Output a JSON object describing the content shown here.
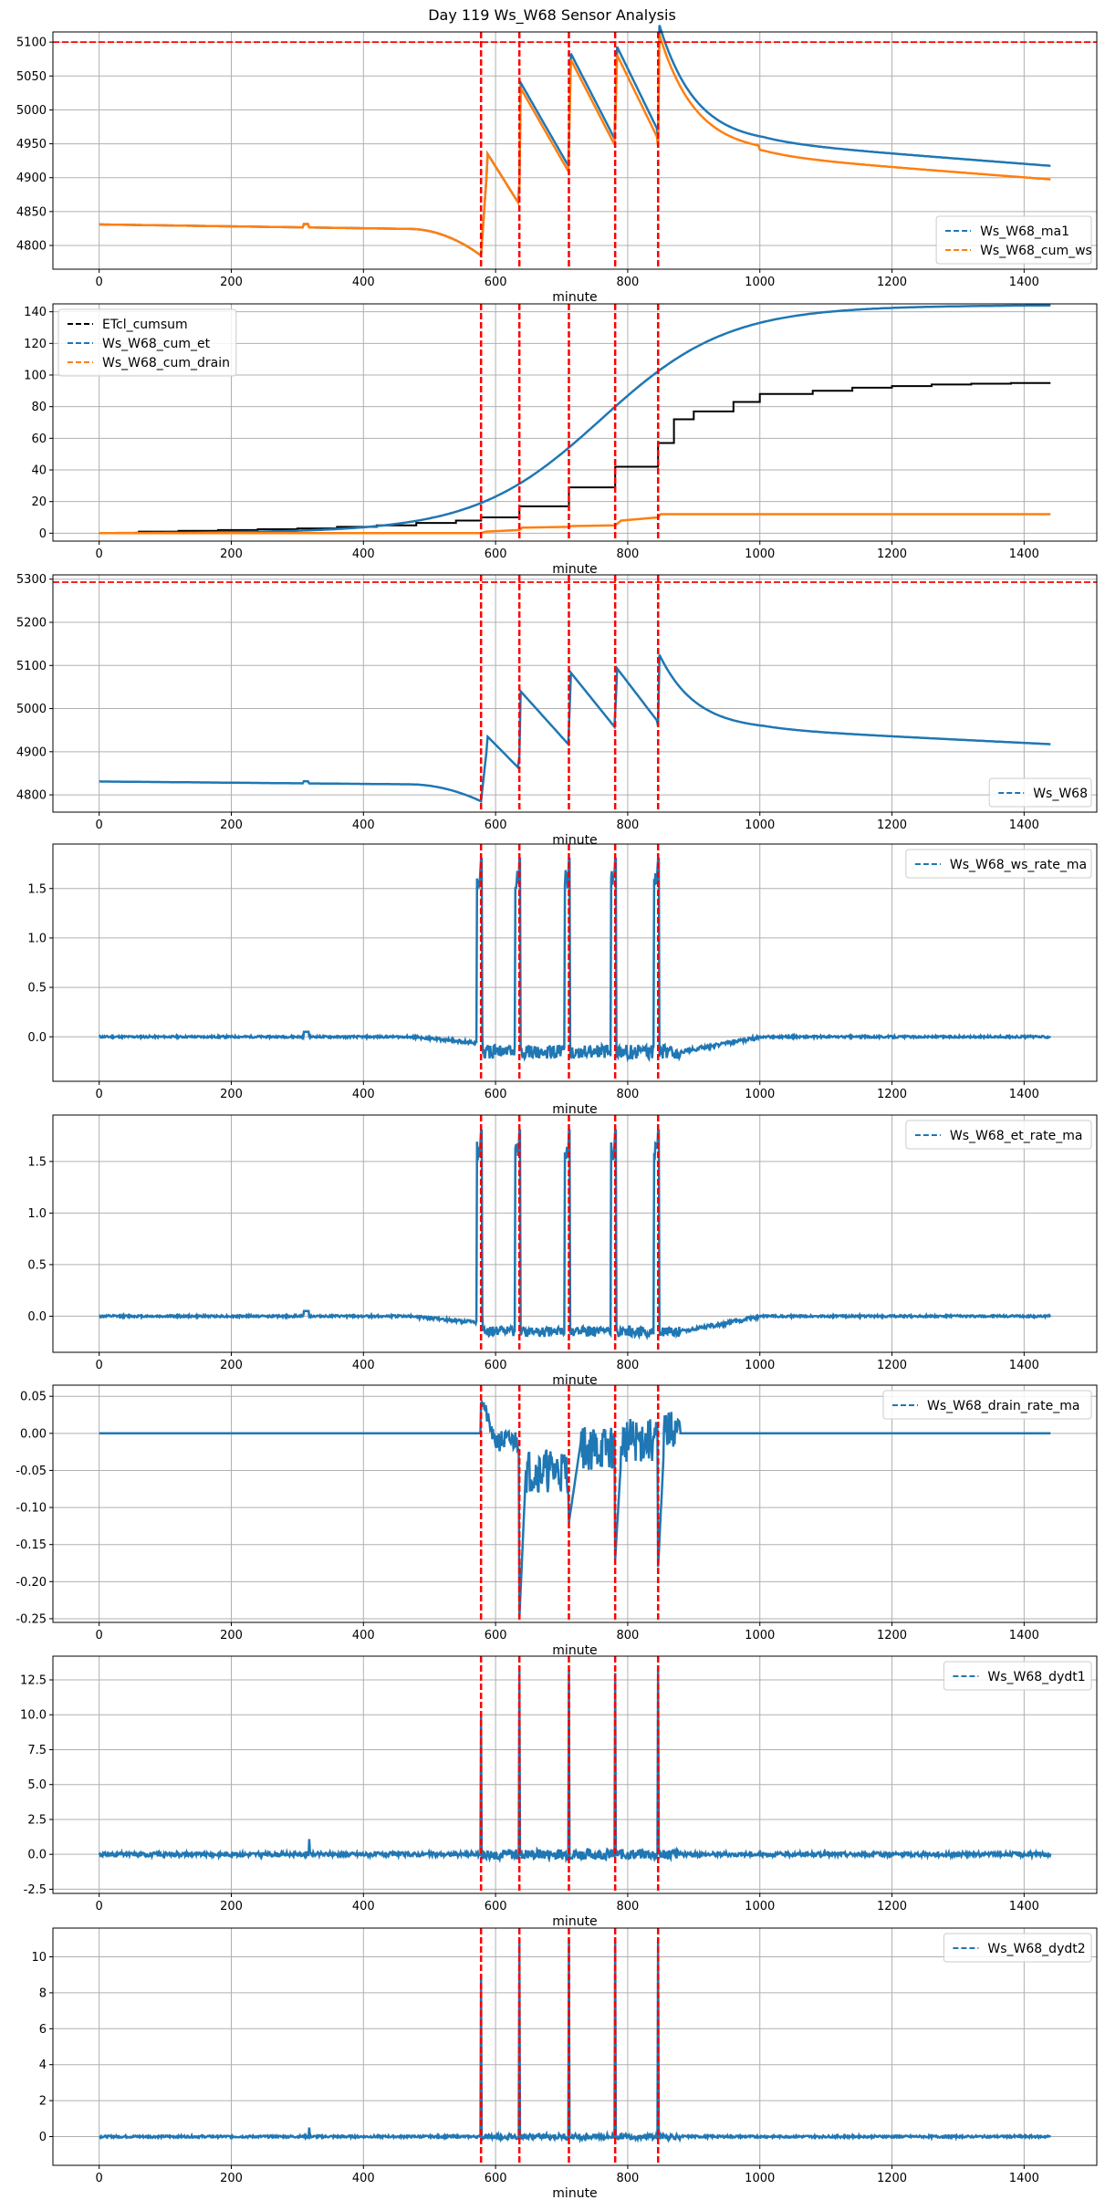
{
  "figure": {
    "title": "Day 119 Ws_W68 Sensor Analysis",
    "irrigation_events": [
      578,
      636,
      711,
      781,
      846
    ]
  },
  "colors": {
    "blue": "#1f77b4",
    "orange": "#ff7f0e",
    "black": "#000000",
    "event": "#ff0000",
    "grid": "#b0b0b0"
  },
  "chart_data": [
    {
      "type": "line",
      "xlabel": "minute",
      "xlim": [
        -70,
        1510
      ],
      "ylim": [
        4765,
        5115
      ],
      "yticks": [
        4800,
        4850,
        4900,
        4950,
        5000,
        5050,
        5100
      ],
      "hline": 5100,
      "legend_position": "lower-right",
      "series": [
        {
          "name": "Ws_W68_ma1",
          "color": "blue",
          "shape": "ws_ma1"
        },
        {
          "name": "Ws_W68_cum_ws",
          "color": "orange",
          "shape": "ws_cum"
        }
      ]
    },
    {
      "type": "line",
      "xlabel": "minute",
      "xlim": [
        -70,
        1510
      ],
      "ylim": [
        -5,
        145
      ],
      "yticks": [
        0,
        20,
        40,
        60,
        80,
        100,
        120,
        140
      ],
      "legend_position": "upper-left",
      "series": [
        {
          "name": "ETcl_cumsum",
          "color": "black",
          "shape": "etcl"
        },
        {
          "name": "Ws_W68_cum_et",
          "color": "blue",
          "shape": "cum_et"
        },
        {
          "name": "Ws_W68_cum_drain",
          "color": "orange",
          "shape": "cum_drain"
        }
      ]
    },
    {
      "type": "line",
      "xlabel": "minute",
      "xlim": [
        -70,
        1510
      ],
      "ylim": [
        4760,
        5310
      ],
      "yticks": [
        4800,
        4900,
        5000,
        5100,
        5200,
        5300
      ],
      "hline": 5293,
      "legend_position": "lower-right",
      "series": [
        {
          "name": "Ws_W68",
          "color": "blue",
          "shape": "ws_raw"
        }
      ]
    },
    {
      "type": "line",
      "xlabel": "minute",
      "xlim": [
        -70,
        1510
      ],
      "ylim": [
        -0.45,
        1.95
      ],
      "yticks": [
        0.0,
        0.5,
        1.0,
        1.5
      ],
      "legend_position": "upper-right",
      "series": [
        {
          "name": "Ws_W68_ws_rate_ma",
          "color": "blue",
          "shape": "rate_ws"
        }
      ]
    },
    {
      "type": "line",
      "xlabel": "minute",
      "xlim": [
        -70,
        1510
      ],
      "ylim": [
        -0.35,
        1.95
      ],
      "yticks": [
        0.0,
        0.5,
        1.0,
        1.5
      ],
      "legend_position": "upper-right",
      "series": [
        {
          "name": "Ws_W68_et_rate_ma",
          "color": "blue",
          "shape": "rate_et"
        }
      ]
    },
    {
      "type": "line",
      "xlabel": "minute",
      "xlim": [
        -70,
        1510
      ],
      "ylim": [
        -0.255,
        0.065
      ],
      "yticks": [
        -0.25,
        -0.2,
        -0.15,
        -0.1,
        -0.05,
        0.0,
        0.05
      ],
      "yformat": 2,
      "legend_position": "upper-right",
      "series": [
        {
          "name": "Ws_W68_drain_rate_ma",
          "color": "blue",
          "shape": "drain_rate"
        }
      ]
    },
    {
      "type": "line",
      "xlabel": "minute",
      "xlim": [
        -70,
        1510
      ],
      "ylim": [
        -2.8,
        14.2
      ],
      "yticks": [
        -2.5,
        0.0,
        2.5,
        5.0,
        7.5,
        10.0,
        12.5
      ],
      "legend_position": "upper-right",
      "series": [
        {
          "name": "Ws_W68_dydt1",
          "color": "blue",
          "shape": "dydt1"
        }
      ]
    },
    {
      "type": "line",
      "xlabel": "minute",
      "xlim": [
        -70,
        1510
      ],
      "ylim": [
        -1.6,
        11.6
      ],
      "yticks": [
        0,
        2,
        4,
        6,
        8,
        10
      ],
      "legend_position": "upper-right",
      "series": [
        {
          "name": "Ws_W68_dydt2",
          "color": "blue",
          "shape": "dydt2"
        }
      ]
    }
  ]
}
